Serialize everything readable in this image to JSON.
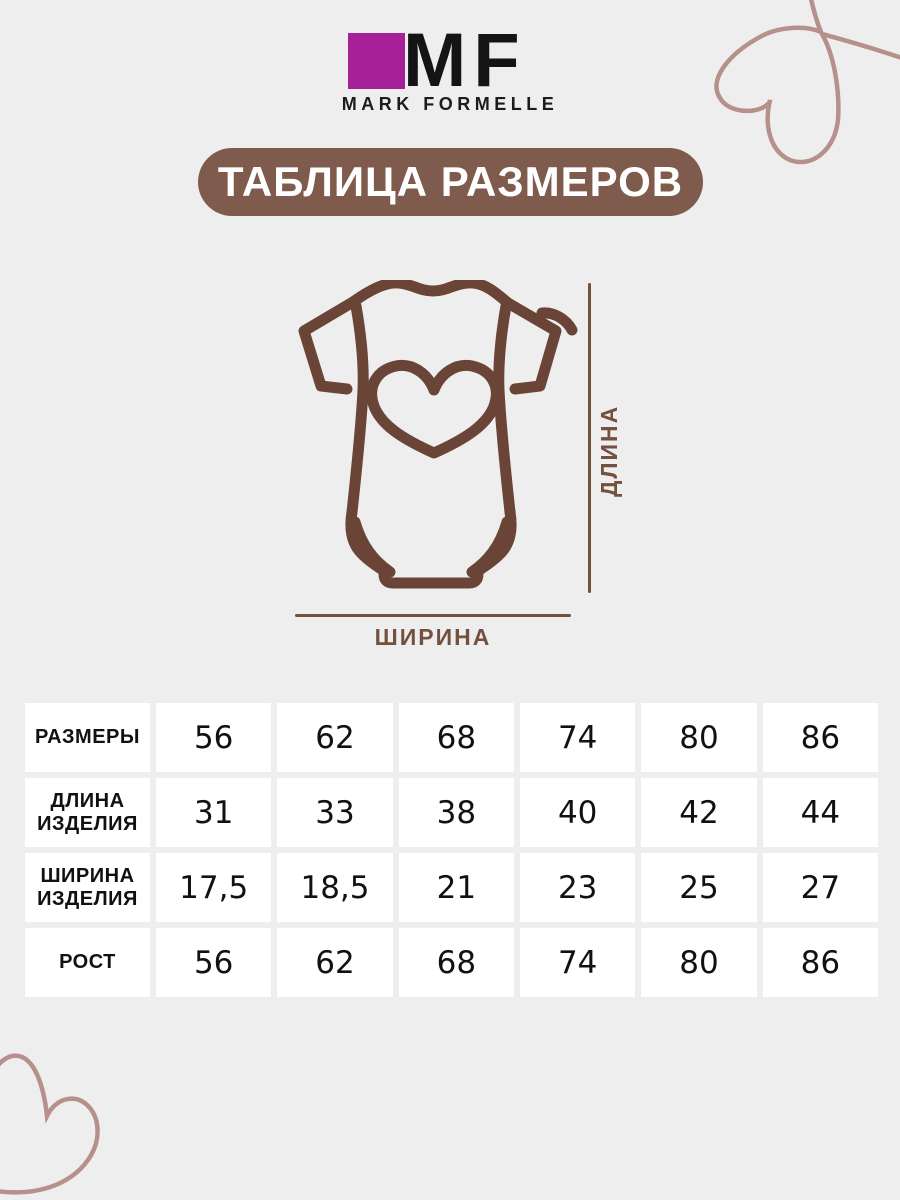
{
  "brand": {
    "logo_text": "MF",
    "name": "MARK FORMELLE"
  },
  "title_banner": "ТАБЛИЦА РАЗМЕРОВ",
  "diagram": {
    "garment": "baby-bodysuit-with-heart",
    "length_label": "ДЛИНА",
    "width_label": "ШИРИНА"
  },
  "chart_data": {
    "type": "table",
    "rows": [
      {
        "label": "РАЗМЕРЫ",
        "values": [
          "56",
          "62",
          "68",
          "74",
          "80",
          "86"
        ]
      },
      {
        "label": "ДЛИНА ИЗДЕЛИЯ",
        "values": [
          "31",
          "33",
          "38",
          "40",
          "42",
          "44"
        ]
      },
      {
        "label": "ШИРИНА ИЗДЕЛИЯ",
        "values": [
          "17,5",
          "18,5",
          "21",
          "23",
          "25",
          "27"
        ]
      },
      {
        "label": "РОСТ",
        "values": [
          "56",
          "62",
          "68",
          "74",
          "80",
          "86"
        ]
      }
    ]
  },
  "colors": {
    "background": "#efeeee",
    "banner_brown": "#7e5b4d",
    "figure_brown": "#6a4537",
    "dimension_brown": "#74503f",
    "heart_rose": "#b6918b",
    "logo_magenta": "#a62098",
    "cell_white": "#ffffff",
    "text_black": "#111111"
  }
}
